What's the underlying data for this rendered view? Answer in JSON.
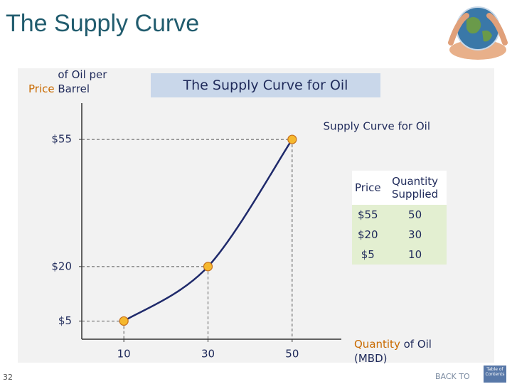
{
  "slide": {
    "title": "The Supply Curve",
    "page_number": "32",
    "back_to": "BACK TO",
    "toc": "Table of Contents"
  },
  "chart_data": {
    "type": "line",
    "title": "The Supply Curve for Oil",
    "ylabel_highlight": "Price",
    "ylabel": "of Oil per Barrel",
    "xlabel_highlight": "Quantity",
    "xlabel": "of Oil (MBD)",
    "x": [
      10,
      30,
      50
    ],
    "series": [
      {
        "name": "Supply Curve for Oil",
        "color": "#1f2a6b",
        "values": [
          5,
          20,
          55
        ]
      }
    ],
    "xlim": [
      0,
      60
    ],
    "ylim": [
      0,
      65
    ],
    "xticks": [
      10,
      30,
      50
    ],
    "yticks": [
      {
        "value": 5,
        "label": "$5"
      },
      {
        "value": 20,
        "label": "$20"
      },
      {
        "value": 55,
        "label": "$55"
      }
    ],
    "marker_color": "#f5b82e"
  },
  "table": {
    "headers": [
      "Price",
      "Quantity Supplied"
    ],
    "rows": [
      [
        "$55",
        "50"
      ],
      [
        "$20",
        "30"
      ],
      [
        "$5",
        "10"
      ]
    ]
  }
}
